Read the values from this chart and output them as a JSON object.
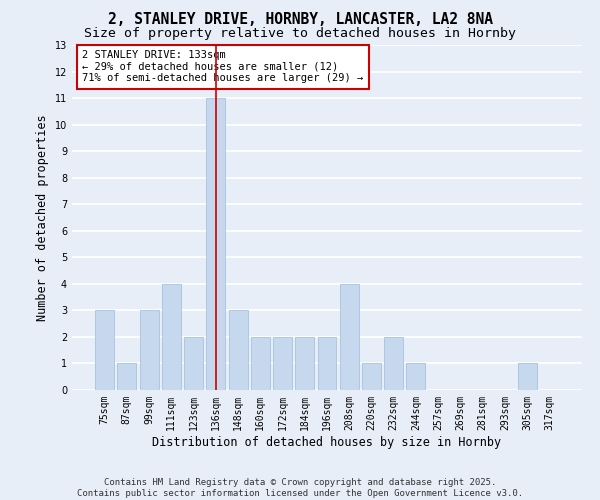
{
  "title1": "2, STANLEY DRIVE, HORNBY, LANCASTER, LA2 8NA",
  "title2": "Size of property relative to detached houses in Hornby",
  "xlabel": "Distribution of detached houses by size in Hornby",
  "ylabel": "Number of detached properties",
  "categories": [
    "75sqm",
    "87sqm",
    "99sqm",
    "111sqm",
    "123sqm",
    "136sqm",
    "148sqm",
    "160sqm",
    "172sqm",
    "184sqm",
    "196sqm",
    "208sqm",
    "220sqm",
    "232sqm",
    "244sqm",
    "257sqm",
    "269sqm",
    "281sqm",
    "293sqm",
    "305sqm",
    "317sqm"
  ],
  "values": [
    3,
    1,
    3,
    4,
    2,
    11,
    3,
    2,
    2,
    2,
    2,
    4,
    1,
    2,
    1,
    0,
    0,
    0,
    0,
    1,
    0
  ],
  "bar_color": "#c5d8ed",
  "bar_edge_color": "#a8c4de",
  "vline_x": 5,
  "vline_color": "#cc0000",
  "annotation_text": "2 STANLEY DRIVE: 133sqm\n← 29% of detached houses are smaller (12)\n71% of semi-detached houses are larger (29) →",
  "annotation_box_color": "#ffffff",
  "annotation_edge_color": "#cc0000",
  "ylim": [
    0,
    13
  ],
  "yticks": [
    0,
    1,
    2,
    3,
    4,
    5,
    6,
    7,
    8,
    9,
    10,
    11,
    12,
    13
  ],
  "background_color": "#e8eef8",
  "grid_color": "#ffffff",
  "footer_text": "Contains HM Land Registry data © Crown copyright and database right 2025.\nContains public sector information licensed under the Open Government Licence v3.0.",
  "title_fontsize": 10.5,
  "subtitle_fontsize": 9.5,
  "axis_label_fontsize": 8.5,
  "tick_fontsize": 7,
  "annotation_fontsize": 7.5,
  "footer_fontsize": 6.5
}
